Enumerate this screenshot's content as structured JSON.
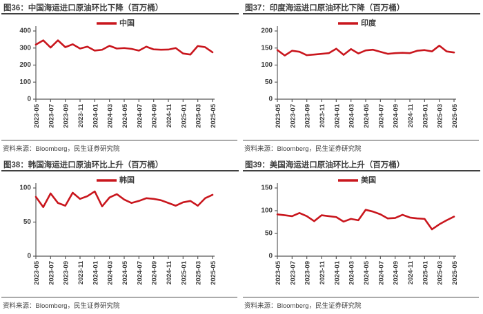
{
  "page": {
    "background": "#FFFFFF"
  },
  "colors": {
    "line_red": "#C9161D",
    "title_text": "#3F3F3F",
    "axis": "#595959",
    "tick_label": "#3F3F3F",
    "rule": "#404040",
    "source_text": "#404040"
  },
  "chart_data": [
    {
      "id": "fig36",
      "type": "line",
      "title": "图36：中国海运进口原油环比下降（百万桶）",
      "legend": "中国",
      "source": "资料来源：Bloomberg，民生证券研究院",
      "ylabel": "",
      "xlabel": "",
      "ylim": [
        0,
        400
      ],
      "y_ticks": [
        0,
        100,
        200,
        300,
        400
      ],
      "x": [
        "2023-05",
        "2023-06",
        "2023-07",
        "2023-08",
        "2023-09",
        "2023-10",
        "2023-11",
        "2023-12",
        "2024-01",
        "2024-02",
        "2024-03",
        "2024-04",
        "2024-05",
        "2024-06",
        "2024-07",
        "2024-08",
        "2024-09",
        "2024-10",
        "2024-11",
        "2024-12",
        "2025-01",
        "2025-02",
        "2025-03",
        "2025-04",
        "2025-05"
      ],
      "x_tick_labels": [
        "2023-05",
        "2023-07",
        "2023-09",
        "2023-11",
        "2024-01",
        "2024-03",
        "2024-05",
        "2024-07",
        "2024-09",
        "2024-11",
        "2025-01",
        "2025-03",
        "2025-05"
      ],
      "values": [
        320,
        345,
        303,
        345,
        305,
        322,
        297,
        308,
        285,
        290,
        313,
        297,
        300,
        295,
        285,
        308,
        292,
        290,
        291,
        300,
        268,
        262,
        312,
        305,
        275
      ],
      "line_color": "#C9161D",
      "legend_position": "top-center",
      "grid": false
    },
    {
      "id": "fig37",
      "type": "line",
      "title": "图37：印度海运进口原油环比下降（百万桶）",
      "legend": "印度",
      "source": "资料来源：Bloomberg，民生证券研究院",
      "ylabel": "",
      "xlabel": "",
      "ylim": [
        0,
        200
      ],
      "y_ticks": [
        0,
        50,
        100,
        150,
        200
      ],
      "x": [
        "2023-05",
        "2023-06",
        "2023-07",
        "2023-08",
        "2023-09",
        "2023-10",
        "2023-11",
        "2023-12",
        "2024-01",
        "2024-02",
        "2024-03",
        "2024-04",
        "2024-05",
        "2024-06",
        "2024-07",
        "2024-08",
        "2024-09",
        "2024-10",
        "2024-11",
        "2024-12",
        "2025-01",
        "2025-02",
        "2025-03",
        "2025-04",
        "2025-05"
      ],
      "x_tick_labels": [
        "2023-05",
        "2023-07",
        "2023-09",
        "2023-11",
        "2024-01",
        "2024-03",
        "2024-05",
        "2024-07",
        "2024-09",
        "2024-11",
        "2025-01",
        "2025-03",
        "2025-05"
      ],
      "values": [
        144,
        128,
        142,
        139,
        129,
        131,
        133,
        135,
        148,
        130,
        147,
        134,
        143,
        145,
        139,
        133,
        135,
        136,
        135,
        142,
        144,
        140,
        157,
        140,
        137
      ],
      "line_color": "#C9161D",
      "legend_position": "top-center",
      "grid": false
    },
    {
      "id": "fig38",
      "type": "line",
      "title": "图38：韩国海运进口原油环比上升（百万桶）",
      "legend": "韩国",
      "source": "资料来源：Bloomberg，民生证券研究院",
      "ylabel": "",
      "xlabel": "",
      "ylim": [
        0,
        100
      ],
      "y_ticks": [
        0,
        50,
        100
      ],
      "x": [
        "2023-05",
        "2023-06",
        "2023-07",
        "2023-08",
        "2023-09",
        "2023-10",
        "2023-11",
        "2023-12",
        "2024-01",
        "2024-02",
        "2024-03",
        "2024-04",
        "2024-05",
        "2024-06",
        "2024-07",
        "2024-08",
        "2024-09",
        "2024-10",
        "2024-11",
        "2024-12",
        "2025-01",
        "2025-02",
        "2025-03",
        "2025-04",
        "2025-05"
      ],
      "x_tick_labels": [
        "2023-05",
        "2023-07",
        "2023-09",
        "2023-11",
        "2024-01",
        "2024-03",
        "2024-05",
        "2024-07",
        "2024-09",
        "2024-11",
        "2025-01",
        "2025-03",
        "2025-05"
      ],
      "values": [
        87,
        72,
        92,
        78,
        74,
        93,
        84,
        88,
        95,
        73,
        86,
        91,
        83,
        78,
        81,
        85,
        84,
        82,
        78,
        74,
        79,
        81,
        74,
        85,
        90
      ],
      "line_color": "#C9161D",
      "legend_position": "top-center",
      "grid": false
    },
    {
      "id": "fig39",
      "type": "line",
      "title": "图39：美国海运进口原油环比上升（百万桶）",
      "legend": "美国",
      "source": "资料来源：Bloomberg，民生证券研究院",
      "ylabel": "",
      "xlabel": "",
      "ylim": [
        0,
        150
      ],
      "y_ticks": [
        0,
        50,
        100,
        150
      ],
      "x": [
        "2023-05",
        "2023-06",
        "2023-07",
        "2023-08",
        "2023-09",
        "2023-10",
        "2023-11",
        "2023-12",
        "2024-01",
        "2024-02",
        "2024-03",
        "2024-04",
        "2024-05",
        "2024-06",
        "2024-07",
        "2024-08",
        "2024-09",
        "2024-10",
        "2024-11",
        "2024-12",
        "2025-01",
        "2025-02",
        "2025-03",
        "2025-04",
        "2025-05"
      ],
      "x_tick_labels": [
        "2023-05",
        "2023-07",
        "2023-09",
        "2023-11",
        "2024-01",
        "2024-03",
        "2024-05",
        "2024-07",
        "2024-09",
        "2024-11",
        "2025-01",
        "2025-03",
        "2025-05"
      ],
      "values": [
        92,
        90,
        88,
        95,
        88,
        77,
        90,
        88,
        86,
        76,
        82,
        79,
        102,
        98,
        92,
        83,
        84,
        91,
        85,
        83,
        82,
        59,
        70,
        79,
        87
      ],
      "line_color": "#C9161D",
      "legend_position": "top-center",
      "grid": false
    }
  ]
}
